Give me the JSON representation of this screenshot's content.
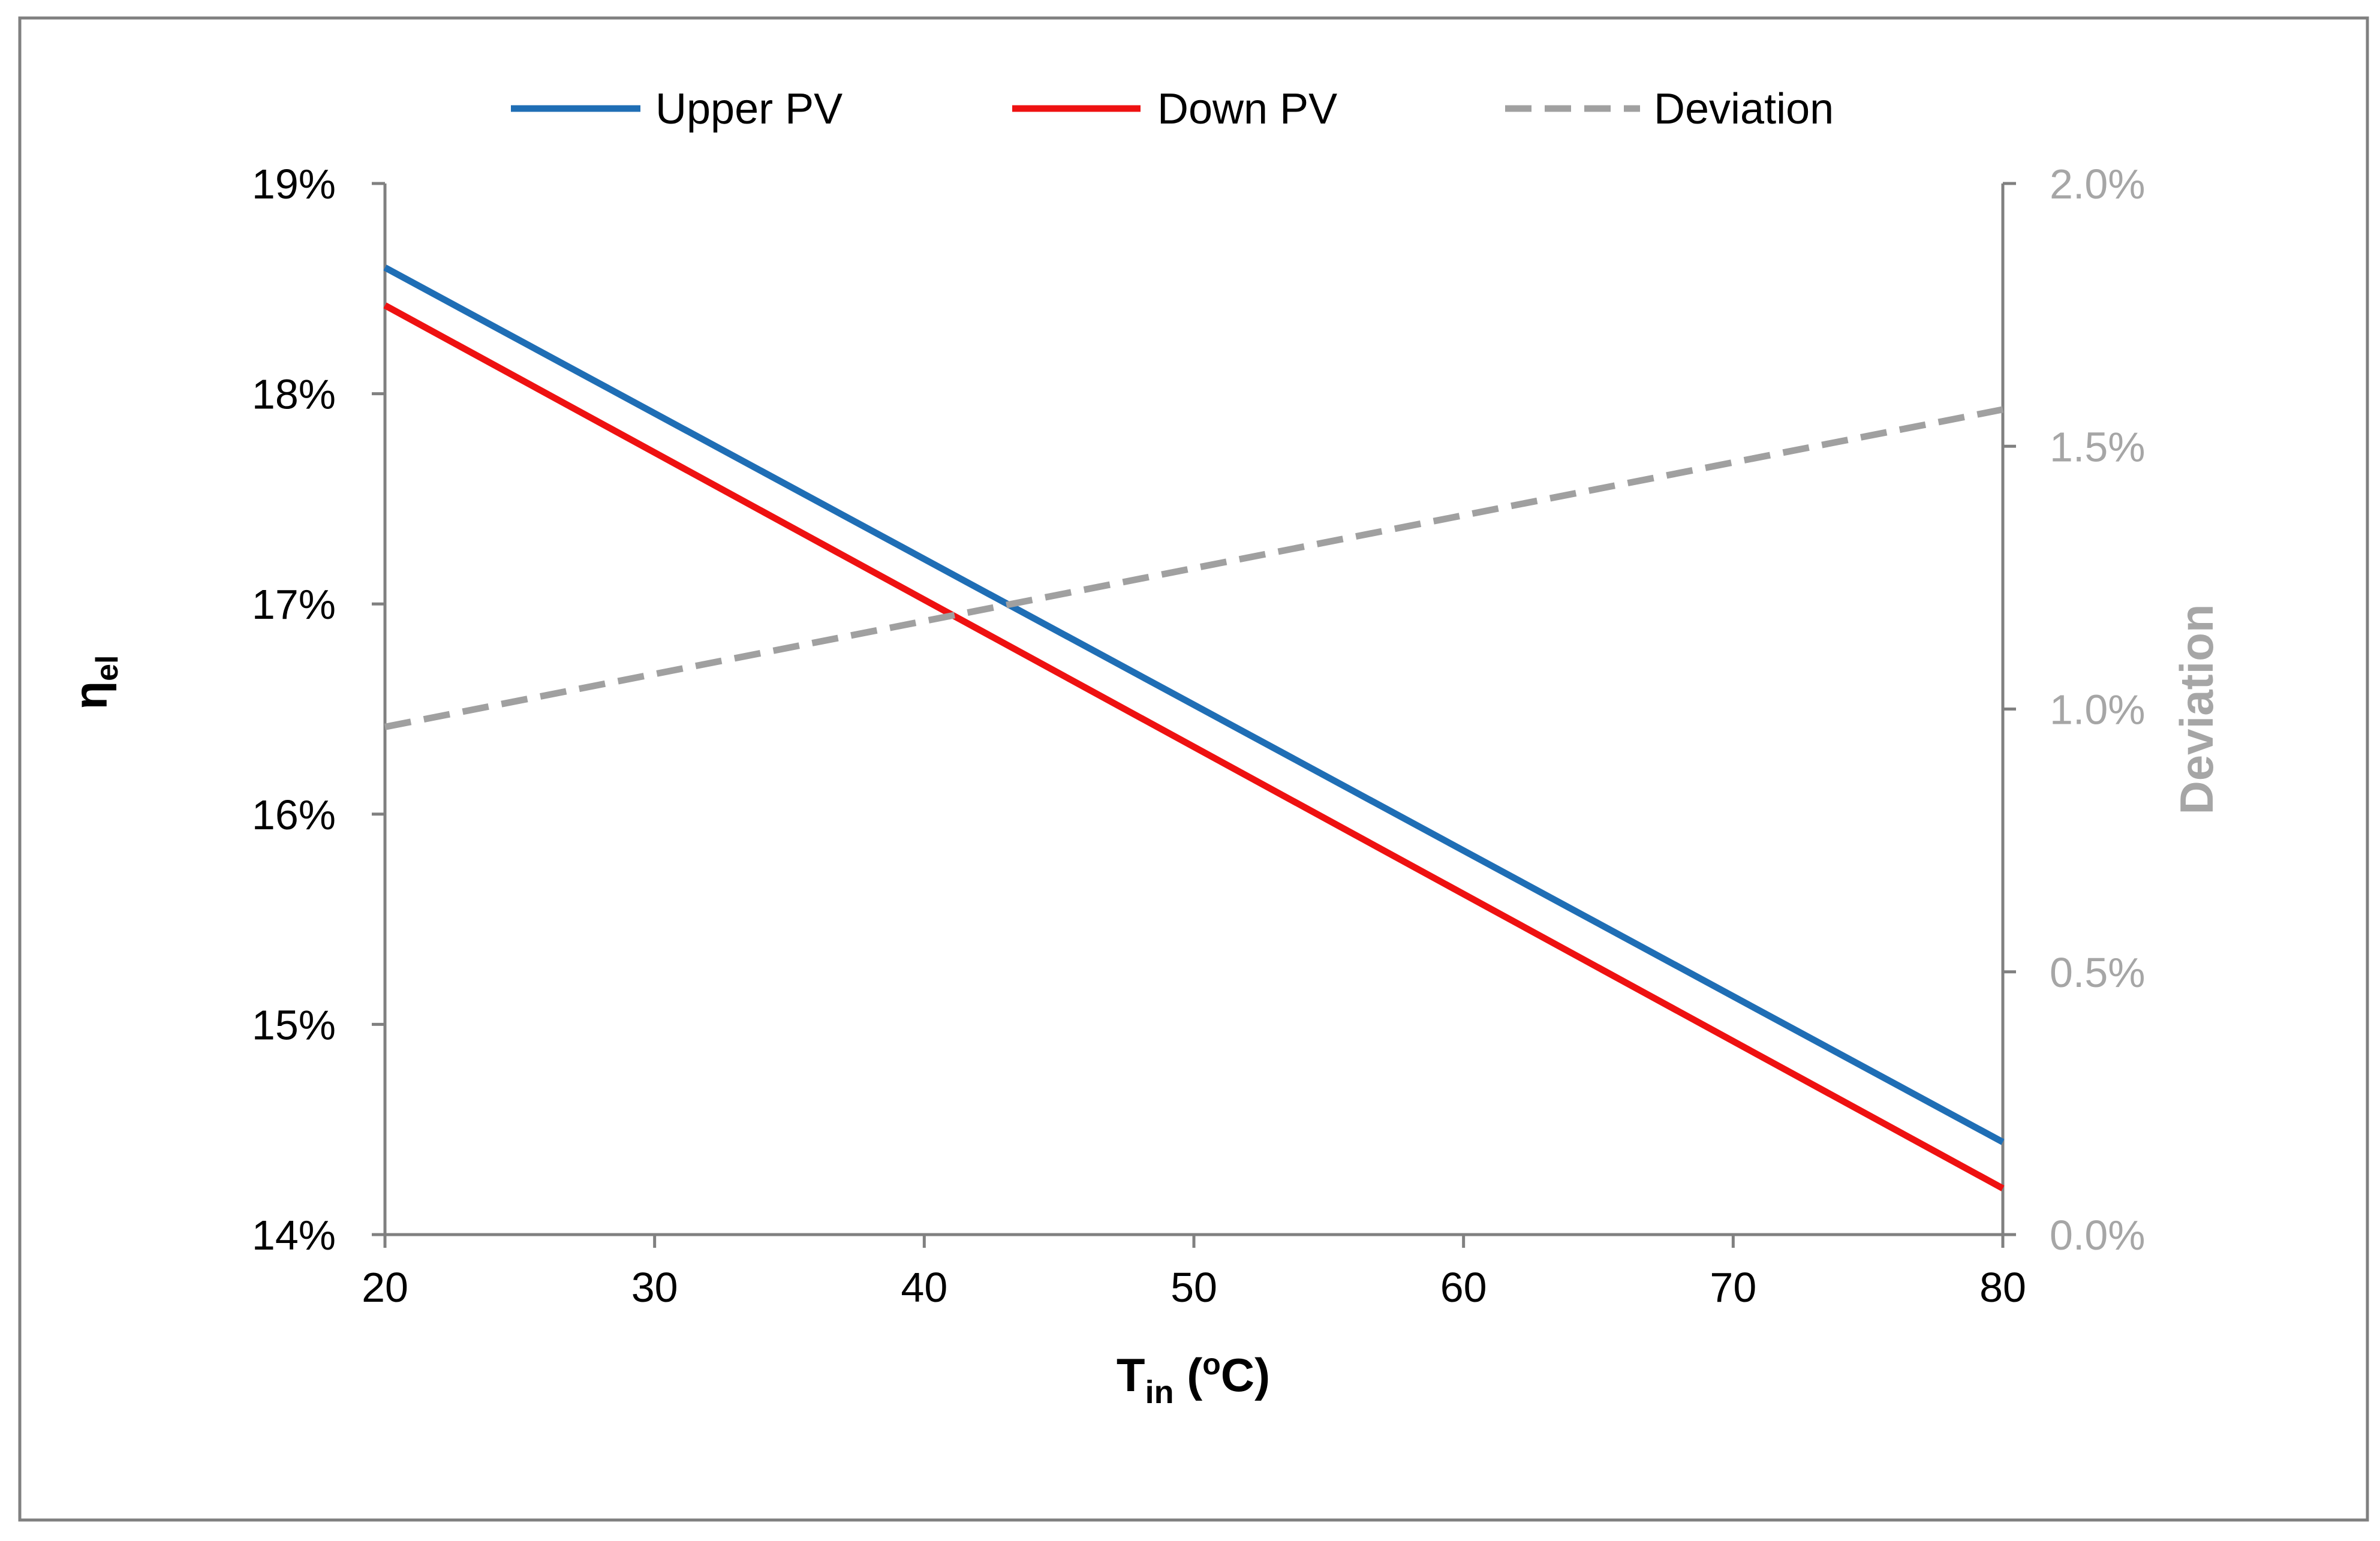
{
  "chart_data": {
    "type": "line",
    "title": "",
    "xlabel": {
      "main": "T",
      "sub": "in",
      "suffix": " (",
      "degree": "o",
      "unit": "C)"
    },
    "ylabel": {
      "main": "η",
      "sub": "el"
    },
    "y2label": "Deviation",
    "xlim": [
      20,
      80
    ],
    "ylim": [
      0.14,
      0.19
    ],
    "y2lim": [
      0.0,
      0.02
    ],
    "x_ticks": [
      20,
      30,
      40,
      50,
      60,
      70,
      80
    ],
    "x_tick_labels": [
      "20",
      "30",
      "40",
      "50",
      "60",
      "70",
      "80"
    ],
    "y_ticks": [
      0.14,
      0.15,
      0.16,
      0.17,
      0.18,
      0.19
    ],
    "y_tick_labels": [
      "14%",
      "15%",
      "16%",
      "17%",
      "18%",
      "19%"
    ],
    "y2_ticks": [
      0.0,
      0.005,
      0.01,
      0.015,
      0.02
    ],
    "y2_tick_labels": [
      "0.0%",
      "0.5%",
      "1.0%",
      "1.5%",
      "2.0%"
    ],
    "grid": false,
    "legend_position": "top",
    "series": [
      {
        "name": "Upper PV",
        "axis": "left",
        "color": "#1f6eb5",
        "style": "solid",
        "x": [
          20,
          80
        ],
        "values": [
          0.186,
          0.1444
        ]
      },
      {
        "name": "Down PV",
        "axis": "left",
        "color": "#ee1111",
        "style": "solid",
        "x": [
          20,
          80
        ],
        "values": [
          0.1842,
          0.1422
        ]
      },
      {
        "name": "Deviation",
        "axis": "right",
        "color": "#a0a0a0",
        "style": "dashed",
        "x": [
          20,
          80
        ],
        "values": [
          0.00966,
          0.0157
        ]
      }
    ],
    "colors": {
      "axis": "#808080",
      "tick_text": "#000000",
      "right_tick_text": "#a6a6a6",
      "frame": "#808080"
    }
  }
}
